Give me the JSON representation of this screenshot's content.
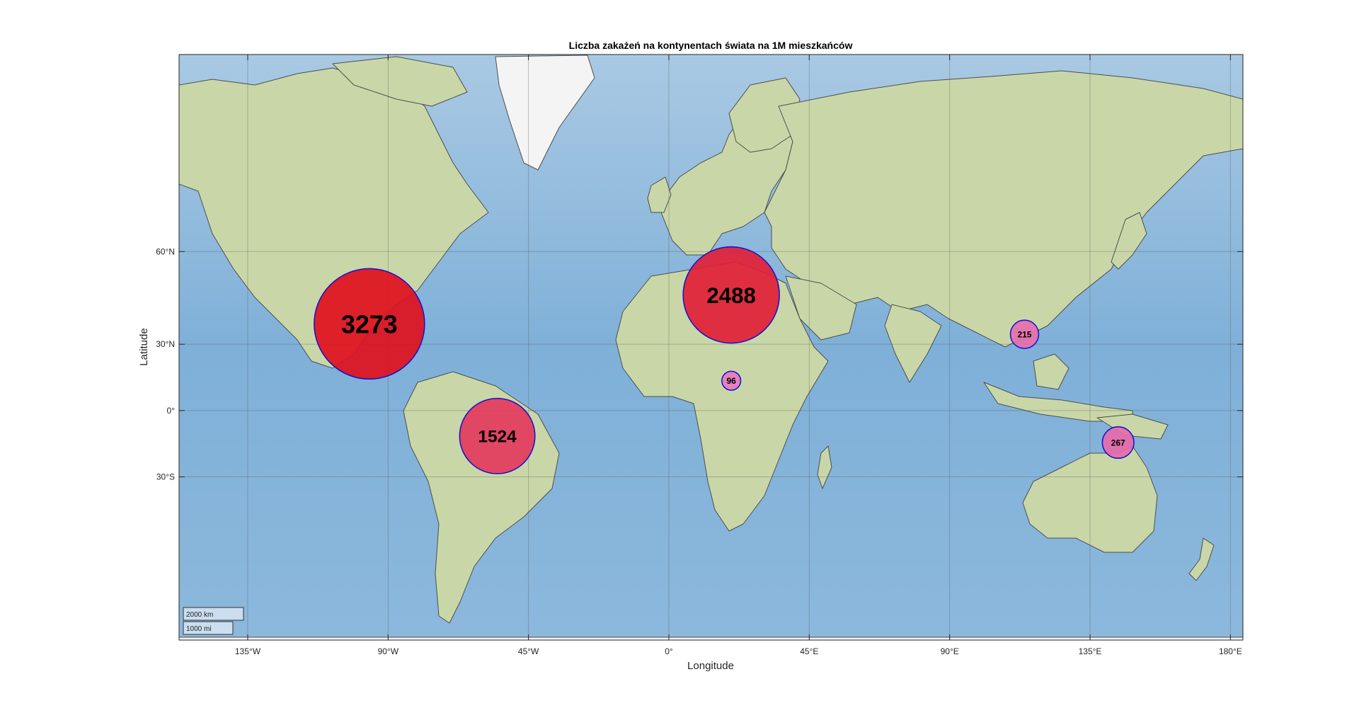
{
  "title": "Liczba zakażeń na kontynentach świata na 1M mieszkańców",
  "xlabel": "Longitude",
  "ylabel": "Latitude",
  "map": {
    "lon_range": [
      -157,
      184
    ],
    "lat_range": [
      -73,
      84
    ],
    "projection": "mercator",
    "grid": true,
    "basemap": "satellite-terrain with country borders",
    "colors": {
      "ocean": "#7fb0d8",
      "land": "#c9d7a8",
      "marker_high": "#e0101e",
      "marker_low": "#e890e0",
      "marker_edge": "#1010d0"
    }
  },
  "x_ticks": [
    {
      "lon": -135,
      "label": "135°W"
    },
    {
      "lon": -90,
      "label": "90°W"
    },
    {
      "lon": -45,
      "label": "45°W"
    },
    {
      "lon": 0,
      "label": "0°"
    },
    {
      "lon": 45,
      "label": "45°E"
    },
    {
      "lon": 90,
      "label": "90°E"
    },
    {
      "lon": 135,
      "label": "135°E"
    },
    {
      "lon": 180,
      "label": "180°E"
    }
  ],
  "y_ticks": [
    {
      "lat": 60,
      "label": "60°N"
    },
    {
      "lat": 30,
      "label": "30°N"
    },
    {
      "lat": 0,
      "label": "0°"
    },
    {
      "lat": -30,
      "label": "30°S"
    }
  ],
  "scalebar": {
    "km_label": "2000 km",
    "mi_label": "1000 mi"
  },
  "chart_data": {
    "type": "scatter",
    "title": "Liczba zakażeń na kontynentach świata na 1M mieszkańców",
    "xlabel": "Longitude",
    "ylabel": "Latitude",
    "xlim": [
      -157,
      184
    ],
    "ylim": [
      -73,
      84
    ],
    "grid": true,
    "points": [
      {
        "label": "3273",
        "value": 3273,
        "lon": -96,
        "lat": 38
      },
      {
        "label": "2488",
        "value": 2488,
        "lon": 20,
        "lat": 48
      },
      {
        "label": "1524",
        "value": 1524,
        "lon": -55,
        "lat": -12
      },
      {
        "label": "267",
        "value": 267,
        "lon": 144,
        "lat": -15
      },
      {
        "label": "215",
        "value": 215,
        "lon": 114,
        "lat": 34
      },
      {
        "label": "96",
        "value": 96,
        "lon": 20,
        "lat": 14
      }
    ]
  }
}
